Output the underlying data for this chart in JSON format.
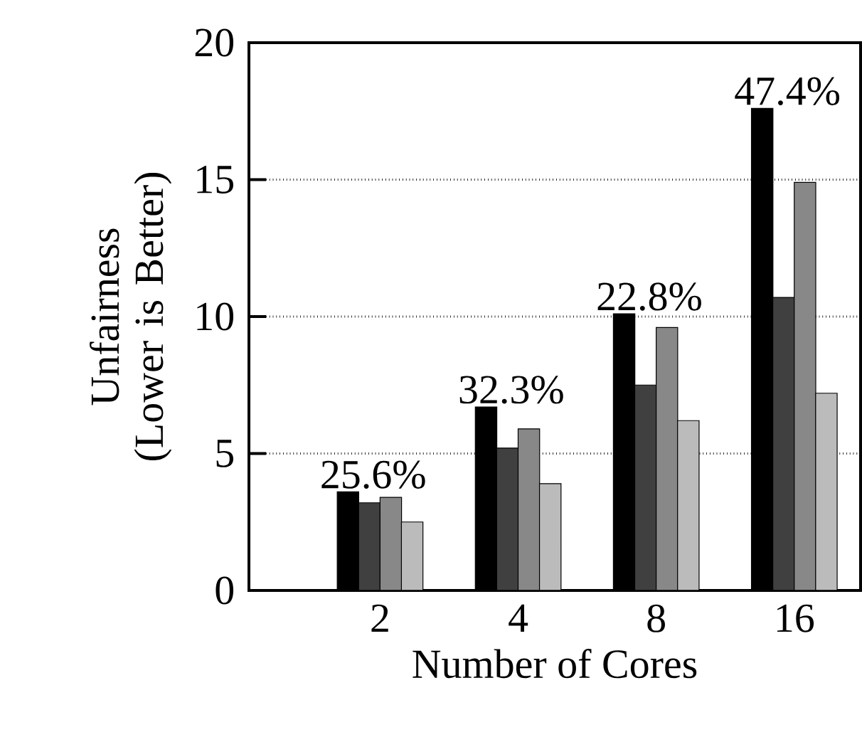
{
  "chart_data": {
    "type": "bar",
    "xlabel": "Number of Cores",
    "ylabel": "Unfairness (Lower is Better)",
    "categories": [
      "2",
      "4",
      "8",
      "16"
    ],
    "series": [
      {
        "color": "#000000",
        "values": [
          3.6,
          6.7,
          10.1,
          17.6
        ]
      },
      {
        "color": "#404040",
        "values": [
          3.2,
          5.2,
          7.5,
          10.7
        ]
      },
      {
        "color": "#888888",
        "values": [
          3.4,
          5.9,
          9.6,
          14.9
        ]
      },
      {
        "color": "#bbbbbb",
        "values": [
          2.5,
          3.9,
          6.2,
          7.2
        ]
      }
    ],
    "ylim": [
      0,
      20
    ],
    "yticks": [
      0,
      5,
      10,
      15,
      20
    ],
    "grid": "y",
    "annotations": [
      "25.6%",
      "32.3%",
      "22.8%",
      "47.4%"
    ]
  }
}
